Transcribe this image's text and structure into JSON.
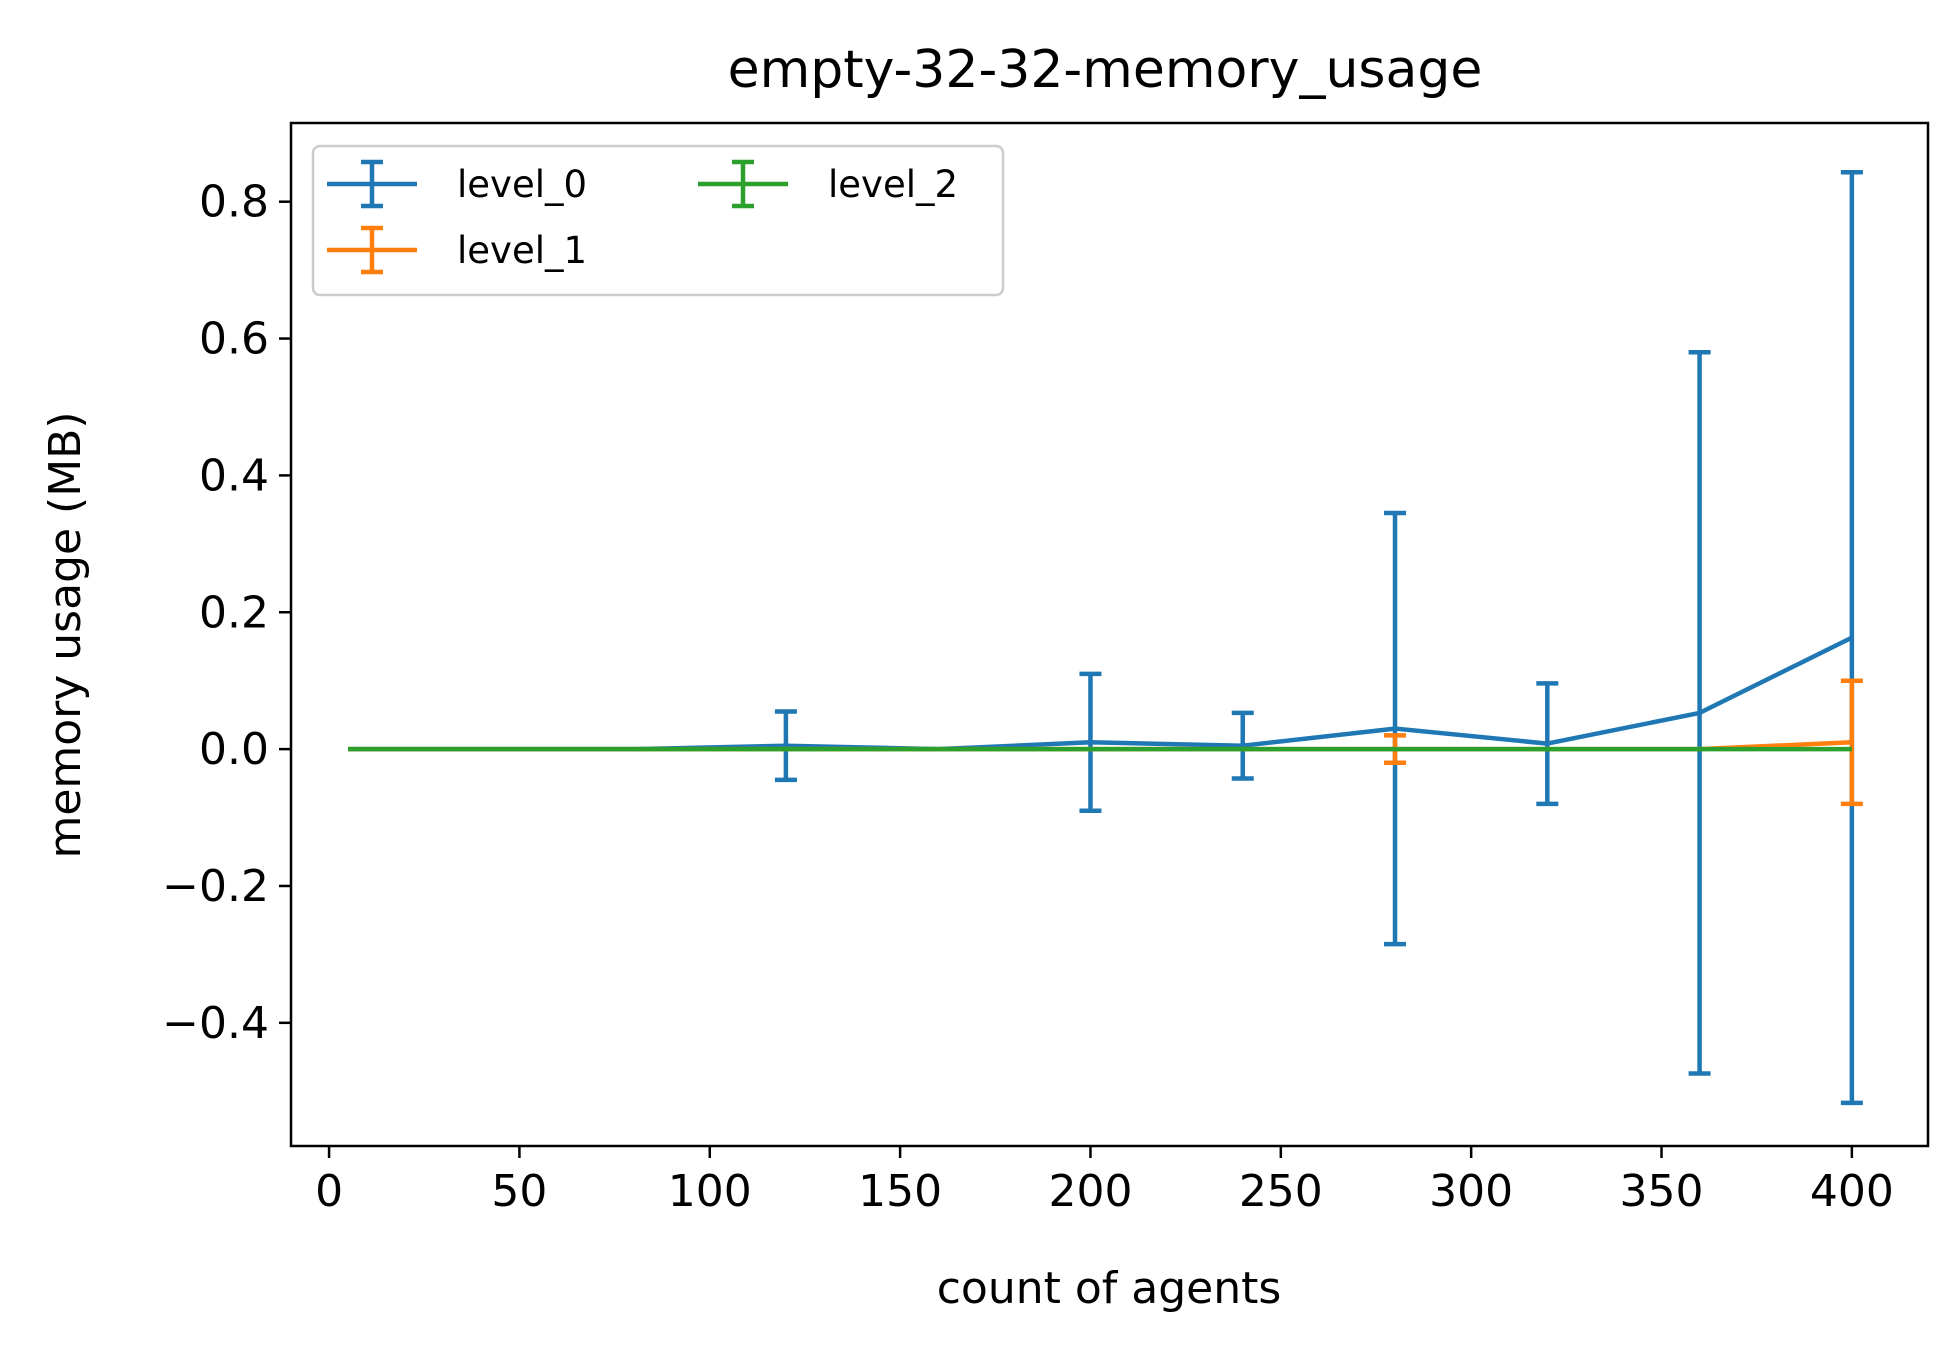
{
  "chart_data": {
    "type": "line",
    "title": "empty-32-32-memory_usage",
    "xlabel": "count of agents",
    "ylabel": "memory usage (MB)",
    "xlim": [
      -10,
      420
    ],
    "ylim": [
      -0.58,
      0.915
    ],
    "x_ticks": [
      0,
      50,
      100,
      150,
      200,
      250,
      300,
      350,
      400
    ],
    "x_tick_labels": [
      "0",
      "50",
      "100",
      "150",
      "200",
      "250",
      "300",
      "350",
      "400"
    ],
    "y_ticks": [
      -0.4,
      -0.2,
      0.0,
      0.2,
      0.4,
      0.6,
      0.8
    ],
    "y_tick_labels": [
      "−0.4",
      "−0.2",
      "0.0",
      "0.2",
      "0.4",
      "0.6",
      "0.8"
    ],
    "legend_position": "top-left",
    "legend_columns": 2,
    "grid": false,
    "series": [
      {
        "name": "level_0",
        "color": "#1f77b4",
        "x": [
          5,
          10,
          20,
          40,
          80,
          120,
          160,
          200,
          240,
          280,
          320,
          360,
          400
        ],
        "y": [
          0.0,
          0.0,
          0.0,
          0.0,
          0.0,
          0.005,
          0.0,
          0.01,
          0.005,
          0.03,
          0.008,
          0.053,
          0.163
        ],
        "err": [
          0.0,
          0.0,
          0.0,
          0.0,
          0.0,
          0.05,
          0.0,
          0.1,
          0.048,
          0.315,
          0.088,
          0.527,
          0.68
        ]
      },
      {
        "name": "level_1",
        "color": "#ff7f0e",
        "x": [
          5,
          10,
          20,
          40,
          80,
          120,
          160,
          200,
          240,
          280,
          320,
          360,
          400
        ],
        "y": [
          0.0,
          0.0,
          0.0,
          0.0,
          0.0,
          0.0,
          0.0,
          0.0,
          0.0,
          0.0,
          0.0,
          0.0,
          0.01
        ],
        "err": [
          0.0,
          0.0,
          0.0,
          0.0,
          0.0,
          0.0,
          0.0,
          0.0,
          0.0,
          0.02,
          0.0,
          0.0,
          0.09
        ]
      },
      {
        "name": "level_2",
        "color": "#2ca02c",
        "x": [
          5,
          10,
          20,
          40,
          80,
          120,
          160,
          200,
          240,
          280,
          320,
          360,
          400
        ],
        "y": [
          0.0,
          0.0,
          0.0,
          0.0,
          0.0,
          0.0,
          0.0,
          0.0,
          0.0,
          0.0,
          0.0,
          0.0,
          0.0
        ],
        "err": [
          0.0,
          0.0,
          0.0,
          0.0,
          0.0,
          0.0,
          0.0,
          0.0,
          0.0,
          0.0,
          0.0,
          0.0,
          0.0
        ]
      }
    ]
  }
}
